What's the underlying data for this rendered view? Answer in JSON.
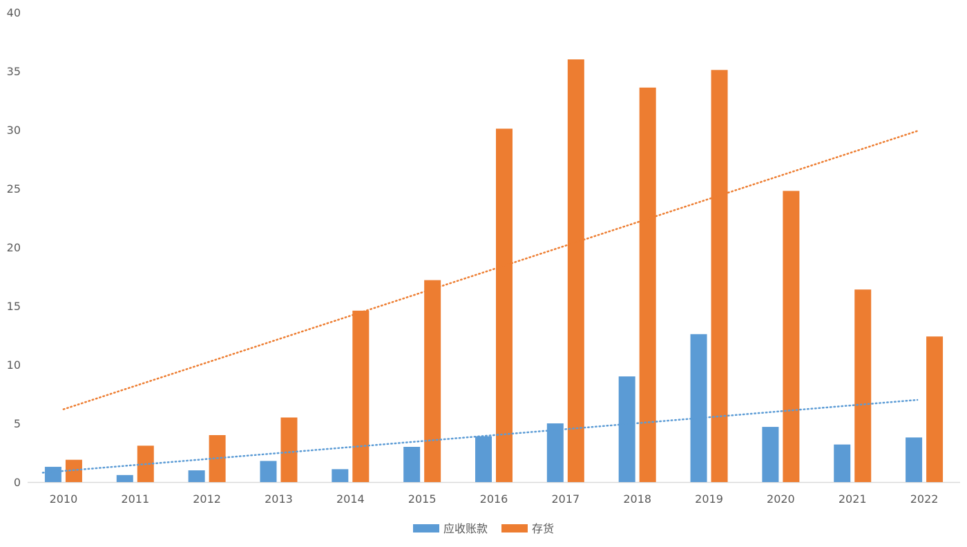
{
  "chart_data": {
    "type": "bar",
    "categories": [
      "2010",
      "2011",
      "2012",
      "2013",
      "2014",
      "2015",
      "2016",
      "2017",
      "2018",
      "2019",
      "2020",
      "2021",
      "2022"
    ],
    "series": [
      {
        "name": "应收账款",
        "color": "#5B9BD5",
        "values": [
          1.3,
          0.6,
          1.0,
          1.8,
          1.1,
          3.0,
          3.9,
          5.0,
          9.0,
          12.6,
          4.7,
          3.2,
          3.8
        ],
        "trendline": {
          "type": "linear",
          "start": 0.8,
          "end": 7.0,
          "style": "dotted"
        }
      },
      {
        "name": "存货",
        "color": "#ED7D31",
        "values": [
          1.9,
          3.1,
          4.0,
          5.5,
          14.6,
          17.2,
          30.1,
          36.0,
          33.6,
          35.1,
          24.8,
          16.4,
          12.4
        ],
        "trendline": {
          "type": "linear",
          "start": 6.2,
          "end": 29.9,
          "style": "dotted"
        }
      }
    ],
    "ylim": [
      0,
      40
    ],
    "yticks": [
      0,
      5,
      10,
      15,
      20,
      25,
      30,
      35,
      40
    ],
    "title": "",
    "xlabel": "",
    "ylabel": "",
    "grid": false,
    "legend_position": "bottom"
  }
}
